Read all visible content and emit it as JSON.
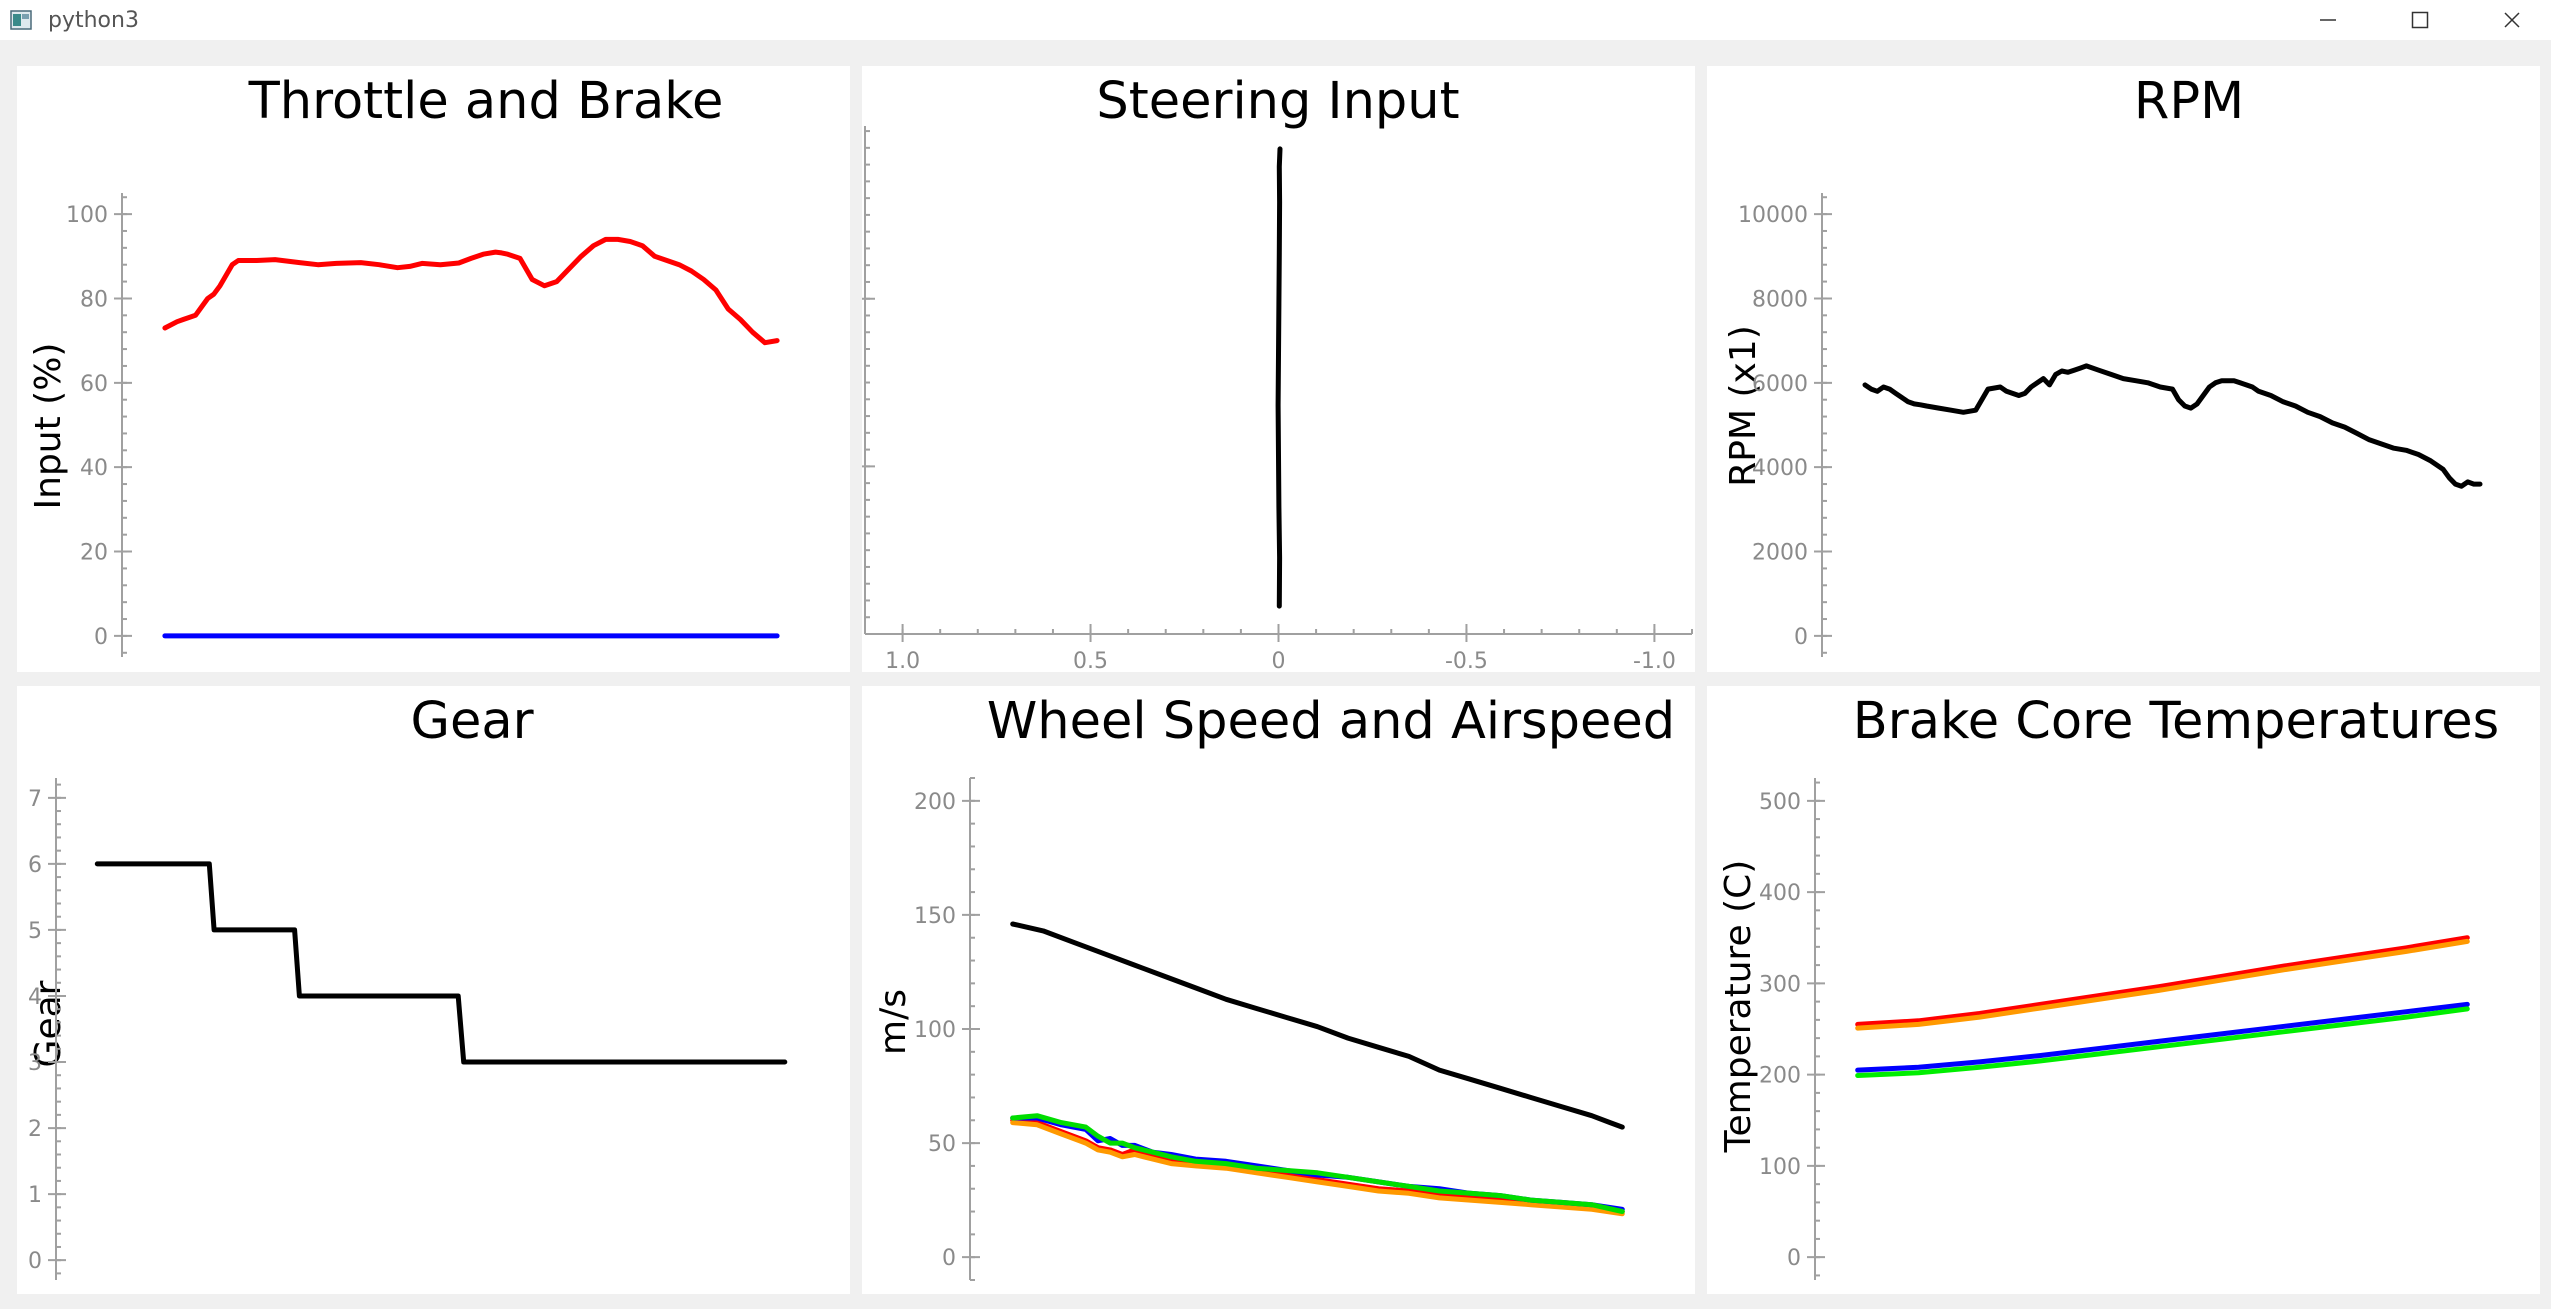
{
  "window": {
    "title": "python3"
  },
  "chart_data": [
    {
      "id": "throttle",
      "type": "line",
      "title": "Throttle and Brake",
      "xlabel": "",
      "ylabel": "Input (%)",
      "ylim": [
        -5,
        105
      ],
      "xlim": [
        -7,
        107
      ],
      "yticks": [
        0,
        20,
        40,
        60,
        80,
        100
      ],
      "ytick_labels": [
        "0",
        "20",
        "40",
        "60",
        "80",
        "100"
      ],
      "minor_y_step": 4,
      "show_x_axis": false,
      "series": [
        {
          "color": "#ff0000",
          "x": [
            0,
            2,
            3,
            4,
            5,
            6,
            7,
            8,
            9,
            10,
            11,
            12,
            13,
            15,
            18,
            22,
            25,
            28,
            32,
            35,
            38,
            40,
            42,
            45,
            48,
            50,
            52,
            54,
            55,
            56,
            58,
            60,
            62,
            64,
            66,
            68,
            70,
            72,
            74,
            76,
            78,
            80,
            82,
            84,
            86,
            88,
            90,
            92,
            94,
            96,
            98,
            100
          ],
          "y": [
            73,
            74.5,
            75,
            75.5,
            76,
            78,
            80,
            81,
            83,
            85.5,
            88,
            89,
            89,
            89,
            89.2,
            88.5,
            88,
            88.3,
            88.5,
            88,
            87.3,
            87.6,
            88.3,
            88,
            88.4,
            89.5,
            90.5,
            91,
            90.8,
            90.5,
            89.5,
            84.5,
            83,
            84,
            87,
            90,
            92.5,
            94,
            94,
            93.5,
            92.5,
            90,
            89,
            88,
            86.5,
            84.5,
            82,
            77.5,
            75,
            72,
            69.5,
            70
          ]
        },
        {
          "color": "#0000ff",
          "x": [
            0,
            100
          ],
          "y": [
            0,
            0
          ]
        }
      ]
    },
    {
      "id": "steering",
      "type": "line",
      "title": "Steering Input",
      "xlabel": "",
      "ylabel": "",
      "xlim": [
        1.1,
        -1.1
      ],
      "ylim": [
        0,
        100
      ],
      "xticks": [
        1.0,
        0.5,
        0,
        -0.5,
        -1.0
      ],
      "xtick_labels": [
        "1.0",
        "0.5",
        "0",
        "-0.5",
        "-1.0"
      ],
      "minor_x_step": 0.1,
      "yticks": [
        33,
        66
      ],
      "ytick_labels": [
        "",
        ""
      ],
      "minor_y_step": 3.3,
      "show_x_axis": true,
      "series": [
        {
          "color": "#000000",
          "x": [
            -0.002,
            -0.003,
            -0.001,
            0.0,
            0.001,
            0.0,
            -0.001,
            -0.002,
            -0.003,
            -0.002,
            -0.004
          ],
          "y": [
            5.5,
            15,
            25,
            35,
            45,
            55,
            65,
            75,
            85,
            92,
            95.5
          ]
        }
      ]
    },
    {
      "id": "rpm",
      "type": "line",
      "title": "RPM",
      "xlabel": "",
      "ylabel": "RPM (x1)",
      "ylim": [
        -500,
        10500
      ],
      "xlim": [
        -7,
        107
      ],
      "yticks": [
        0,
        2000,
        4000,
        6000,
        8000,
        10000
      ],
      "ytick_labels": [
        "0",
        "2000",
        "4000",
        "6000",
        "8000",
        "10000"
      ],
      "minor_y_step": 400,
      "show_x_axis": false,
      "series": [
        {
          "color": "#000000",
          "x": [
            0,
            1,
            2,
            3,
            4,
            5,
            6,
            7,
            8,
            9,
            10,
            12,
            14,
            16,
            18,
            20,
            22,
            23,
            24,
            25,
            26,
            27,
            28,
            29,
            30,
            31,
            32,
            33,
            34,
            35,
            36,
            38,
            40,
            42,
            44,
            46,
            48,
            50,
            51,
            52,
            53,
            54,
            55,
            56,
            57,
            58,
            59,
            60,
            61,
            62,
            63,
            64,
            66,
            68,
            70,
            72,
            74,
            76,
            78,
            80,
            82,
            84,
            86,
            88,
            90,
            92,
            94,
            95,
            96,
            97,
            98,
            99,
            100
          ],
          "y": [
            5950,
            5850,
            5800,
            5900,
            5850,
            5750,
            5650,
            5550,
            5500,
            5480,
            5450,
            5400,
            5350,
            5300,
            5350,
            5850,
            5900,
            5800,
            5750,
            5700,
            5750,
            5900,
            6000,
            6100,
            5950,
            6200,
            6280,
            6250,
            6300,
            6350,
            6400,
            6300,
            6200,
            6100,
            6050,
            6000,
            5900,
            5850,
            5600,
            5450,
            5400,
            5500,
            5700,
            5900,
            6000,
            6050,
            6050,
            6050,
            6000,
            5950,
            5900,
            5800,
            5700,
            5550,
            5450,
            5300,
            5200,
            5050,
            4950,
            4800,
            4650,
            4550,
            4450,
            4400,
            4300,
            4150,
            3950,
            3750,
            3600,
            3550,
            3650,
            3600,
            3600
          ]
        }
      ]
    },
    {
      "id": "gear",
      "type": "line",
      "title": "Gear",
      "xlabel": "",
      "ylabel": "Gear",
      "ylim": [
        -0.3,
        7.3
      ],
      "xlim": [
        -6,
        106
      ],
      "yticks": [
        0,
        1,
        2,
        3,
        4,
        5,
        6,
        7
      ],
      "ytick_labels": [
        "0",
        "1",
        "2",
        "3",
        "4",
        "5",
        "6",
        "7"
      ],
      "minor_y_step": 0.2,
      "show_x_axis": false,
      "series": [
        {
          "color": "#000000",
          "x": [
            0,
            16.3,
            17,
            28.7,
            29.4,
            52.5,
            53.3,
            100
          ],
          "y": [
            6,
            6,
            5,
            5,
            4,
            4,
            3,
            3
          ]
        }
      ]
    },
    {
      "id": "wheelspeed",
      "type": "line",
      "title": "Wheel Speed and Airspeed",
      "xlabel": "",
      "ylabel": "m/s",
      "ylim": [
        -10,
        210
      ],
      "xlim": [
        -7,
        107
      ],
      "yticks": [
        0,
        50,
        100,
        150,
        200
      ],
      "ytick_labels": [
        "0",
        "50",
        "100",
        "150",
        "200"
      ],
      "minor_y_step": 10,
      "show_x_axis": false,
      "series": [
        {
          "color": "#000000",
          "x": [
            0,
            5,
            10,
            15,
            20,
            25,
            30,
            35,
            40,
            45,
            50,
            55,
            60,
            65,
            70,
            75,
            80,
            85,
            90,
            95,
            98,
            100
          ],
          "y": [
            146,
            143,
            138,
            133,
            128,
            123,
            118,
            113,
            109,
            105,
            101,
            96,
            92,
            88,
            82,
            78,
            74,
            70,
            66,
            62,
            59,
            57
          ]
        },
        {
          "color": "#ff0000",
          "x": [
            0,
            4,
            8,
            12,
            14,
            16,
            18,
            20,
            23,
            26,
            30,
            35,
            40,
            45,
            50,
            55,
            60,
            65,
            70,
            75,
            80,
            85,
            90,
            95,
            100
          ],
          "y": [
            60,
            59,
            55,
            51,
            48,
            47,
            45,
            47,
            44,
            42,
            41,
            40,
            38,
            36,
            34,
            32,
            30,
            29,
            27,
            26,
            25,
            24,
            23,
            22,
            20
          ]
        },
        {
          "color": "#ff9900",
          "x": [
            0,
            4,
            8,
            12,
            14,
            16,
            18,
            20,
            23,
            26,
            30,
            35,
            40,
            45,
            50,
            55,
            60,
            65,
            70,
            75,
            80,
            85,
            90,
            95,
            100
          ],
          "y": [
            59,
            58,
            54,
            50,
            47,
            46,
            44,
            45,
            43,
            41,
            40,
            39,
            37,
            35,
            33,
            31,
            29,
            28,
            26,
            25,
            24,
            23,
            22,
            21,
            19
          ]
        },
        {
          "color": "#0000ff",
          "x": [
            0,
            4,
            8,
            12,
            14,
            16,
            18,
            20,
            23,
            26,
            30,
            35,
            40,
            45,
            50,
            55,
            60,
            65,
            70,
            75,
            80,
            85,
            90,
            95,
            100
          ],
          "y": [
            61,
            61,
            58,
            56,
            51,
            52,
            49,
            49,
            46,
            45,
            43,
            42,
            40,
            38,
            36,
            35,
            33,
            31,
            30,
            28,
            27,
            25,
            24,
            23,
            21
          ]
        },
        {
          "color": "#00dd00",
          "x": [
            0,
            4,
            8,
            12,
            14,
            16,
            18,
            20,
            23,
            26,
            30,
            35,
            40,
            45,
            50,
            55,
            60,
            65,
            70,
            75,
            80,
            85,
            90,
            95,
            100
          ],
          "y": [
            61,
            62,
            59,
            57,
            53,
            50,
            50,
            48,
            46,
            44,
            42,
            41,
            39,
            38,
            37,
            35,
            33,
            31,
            29,
            28,
            27,
            25,
            24,
            23,
            20
          ]
        }
      ]
    },
    {
      "id": "brake_temps",
      "type": "line",
      "title": "Brake Core Temperatures",
      "xlabel": "",
      "ylabel": "Temperature (C)",
      "ylim": [
        -25,
        525
      ],
      "xlim": [
        -7,
        107
      ],
      "yticks": [
        0,
        100,
        200,
        300,
        400,
        500
      ],
      "ytick_labels": [
        "0",
        "100",
        "200",
        "300",
        "400",
        "500"
      ],
      "minor_y_step": 20,
      "show_x_axis": false,
      "series": [
        {
          "color": "#ff0000",
          "x": [
            0,
            10,
            20,
            30,
            40,
            50,
            60,
            70,
            80,
            90,
            100
          ],
          "y": [
            255,
            259,
            267,
            277,
            287,
            297,
            308,
            319,
            329,
            339,
            350
          ]
        },
        {
          "color": "#ff9900",
          "x": [
            0,
            10,
            20,
            30,
            40,
            50,
            60,
            70,
            80,
            90,
            100
          ],
          "y": [
            251,
            255,
            263,
            273,
            283,
            293,
            304,
            315,
            325,
            335,
            346
          ]
        },
        {
          "color": "#0000ff",
          "x": [
            0,
            10,
            20,
            30,
            40,
            50,
            60,
            70,
            80,
            90,
            100
          ],
          "y": [
            205,
            208,
            214,
            221,
            229,
            237,
            245,
            253,
            261,
            269,
            277
          ]
        },
        {
          "color": "#00ee00",
          "x": [
            0,
            10,
            20,
            30,
            40,
            50,
            60,
            70,
            80,
            90,
            100
          ],
          "y": [
            199,
            202,
            208,
            215,
            223,
            231,
            239,
            247,
            255,
            263,
            272
          ]
        }
      ]
    }
  ]
}
